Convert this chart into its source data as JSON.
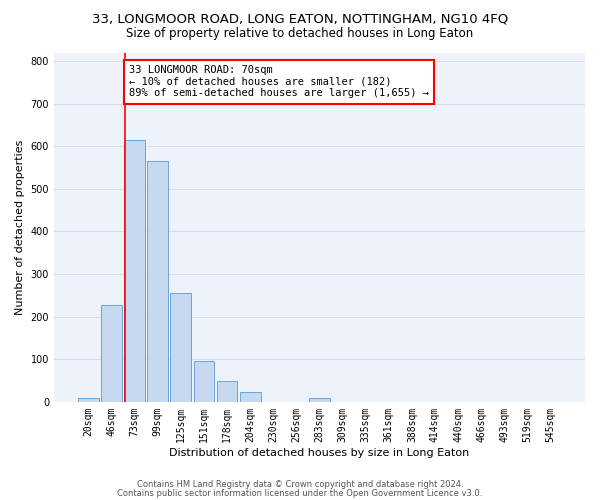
{
  "title": "33, LONGMOOR ROAD, LONG EATON, NOTTINGHAM, NG10 4FQ",
  "subtitle": "Size of property relative to detached houses in Long Eaton",
  "xlabel": "Distribution of detached houses by size in Long Eaton",
  "ylabel": "Number of detached properties",
  "bin_labels": [
    "20sqm",
    "46sqm",
    "73sqm",
    "99sqm",
    "125sqm",
    "151sqm",
    "178sqm",
    "204sqm",
    "230sqm",
    "256sqm",
    "283sqm",
    "309sqm",
    "335sqm",
    "361sqm",
    "388sqm",
    "414sqm",
    "440sqm",
    "466sqm",
    "493sqm",
    "519sqm",
    "545sqm"
  ],
  "bar_heights": [
    10,
    228,
    615,
    565,
    255,
    95,
    48,
    22,
    0,
    0,
    8,
    0,
    0,
    0,
    0,
    0,
    0,
    0,
    0,
    0,
    0
  ],
  "bar_color": "#c6d9f0",
  "bar_edge_color": "#5b9bd5",
  "grid_color": "#d0d8e8",
  "background_color": "#eef2fa",
  "property_line_color": "red",
  "annotation_title": "33 LONGMOOR ROAD: 70sqm",
  "annotation_line1": "← 10% of detached houses are smaller (182)",
  "annotation_line2": "89% of semi-detached houses are larger (1,655) →",
  "annotation_box_color": "white",
  "annotation_border_color": "red",
  "ylim": [
    0,
    820
  ],
  "yticks": [
    0,
    100,
    200,
    300,
    400,
    500,
    600,
    700,
    800
  ],
  "footer1": "Contains HM Land Registry data © Crown copyright and database right 2024.",
  "footer2": "Contains public sector information licensed under the Open Government Licence v3.0.",
  "title_fontsize": 9.5,
  "subtitle_fontsize": 8.5,
  "xlabel_fontsize": 8,
  "ylabel_fontsize": 8,
  "tick_fontsize": 7,
  "annotation_fontsize": 7.5,
  "footer_fontsize": 6
}
